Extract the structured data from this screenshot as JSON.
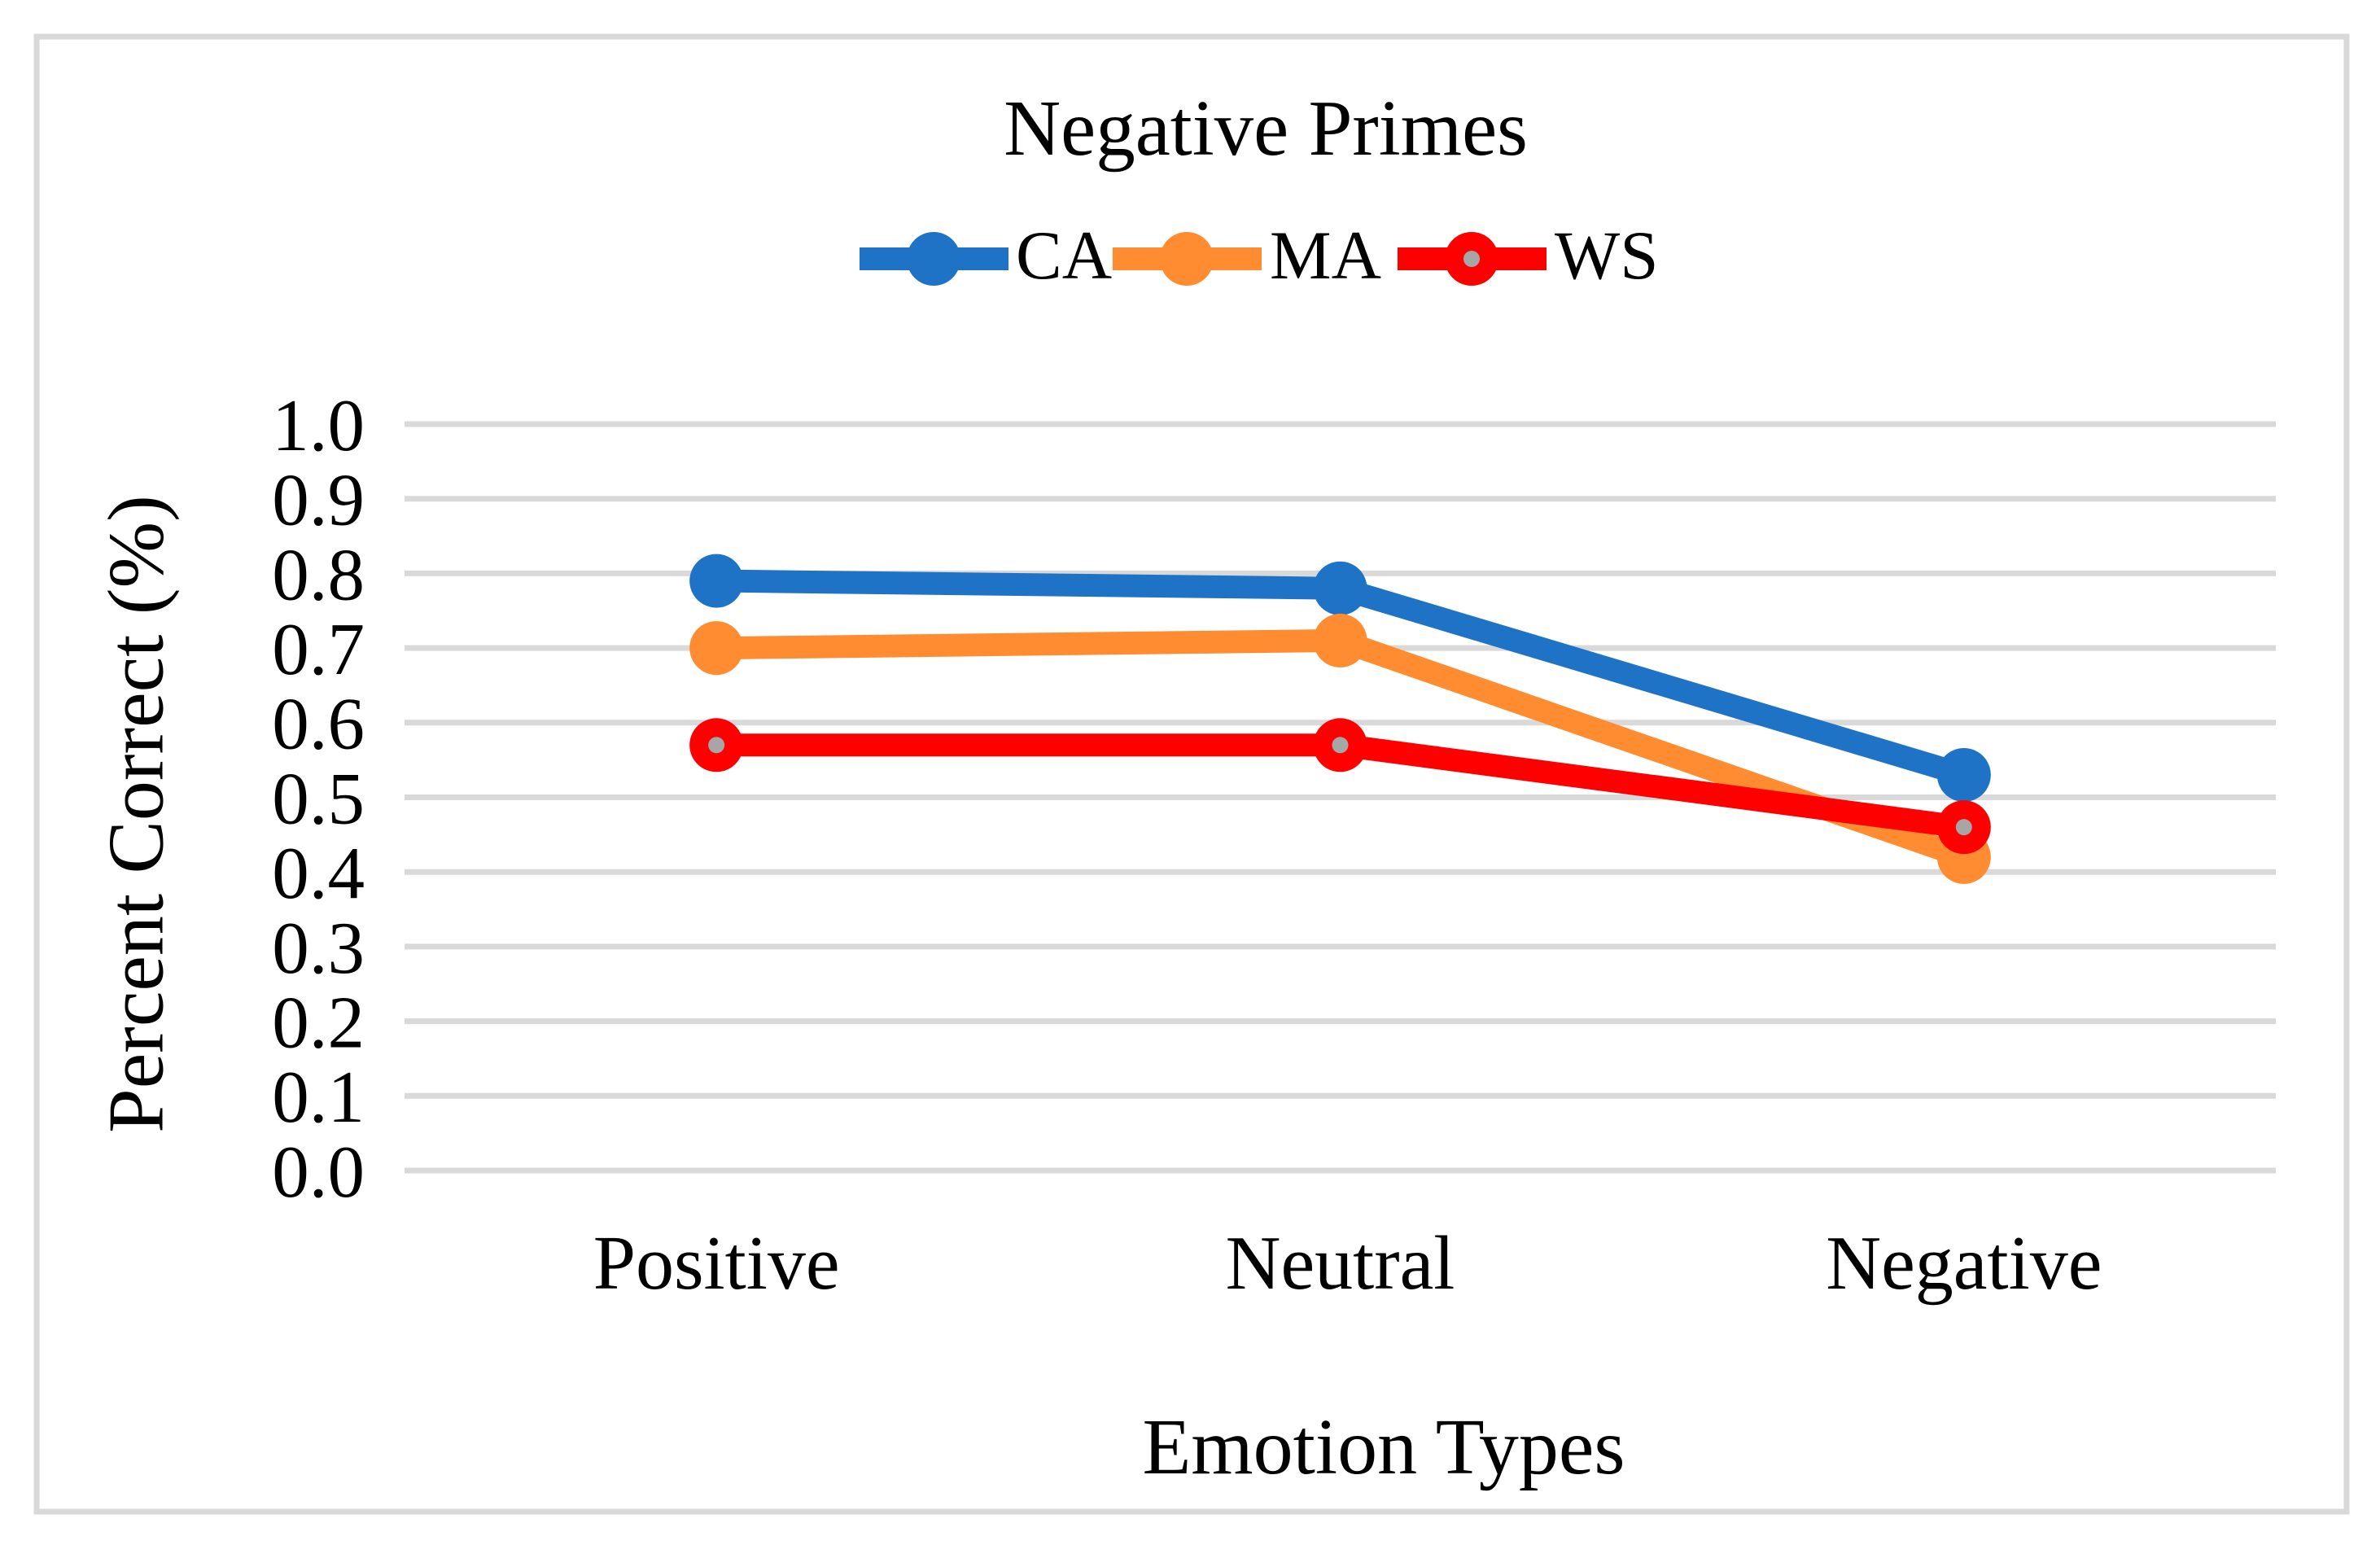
{
  "chart_data": {
    "type": "line",
    "title": "Negative Primes",
    "xlabel": "Emotion Types",
    "ylabel": "Percent Correct (%)",
    "categories": [
      "Positive",
      "Neutral",
      "Negative"
    ],
    "series": [
      {
        "name": "CA",
        "color": "#1F73C6",
        "marker": "circle",
        "values": [
          0.79,
          0.78,
          0.53
        ]
      },
      {
        "name": "MA",
        "color": "#FF8C31",
        "marker": "circle",
        "values": [
          0.7,
          0.71,
          0.42
        ]
      },
      {
        "name": "WS",
        "color": "#FF0000",
        "marker": "circle-with-gray-dot",
        "marker_dot_color": "#A6A6A6",
        "values": [
          0.57,
          0.57,
          0.46
        ]
      }
    ],
    "ylim": [
      0.0,
      1.0
    ],
    "ytick_labels": [
      "0.0",
      "0.1",
      "0.2",
      "0.3",
      "0.4",
      "0.5",
      "0.6",
      "0.7",
      "0.8",
      "0.9",
      "1.0"
    ],
    "grid": "horizontal",
    "gridline_color": "#D9D9D9",
    "legend_position": "top-center"
  },
  "style": {
    "background": "#FFFFFF",
    "border_color": "#D9D9D9",
    "text_color": "#000000"
  }
}
